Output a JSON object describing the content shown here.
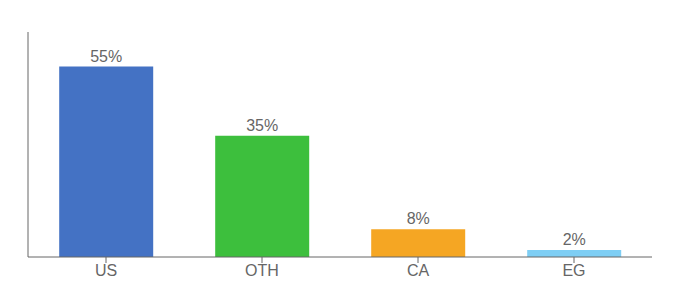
{
  "chart_data": {
    "type": "bar",
    "categories": [
      "US",
      "OTH",
      "CA",
      "EG"
    ],
    "values": [
      55,
      35,
      8,
      2
    ],
    "value_labels": [
      "55%",
      "35%",
      "8%",
      "2%"
    ],
    "colors": [
      "#4472c4",
      "#3dbf3d",
      "#f5a623",
      "#7ecef4"
    ],
    "ylim": [
      0,
      65
    ],
    "data_labels": true,
    "tick_labels": "x",
    "grid": false
  }
}
